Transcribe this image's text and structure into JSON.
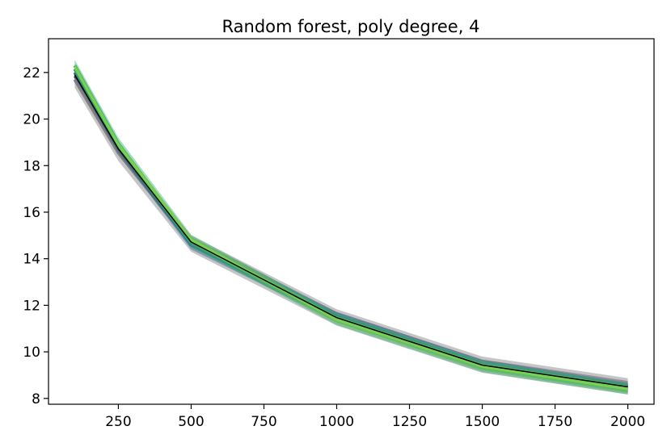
{
  "chart_data": {
    "type": "line",
    "title": "Random forest, poly degree, 4",
    "xlabel": "",
    "ylabel": "",
    "xlim": [
      10,
      2090
    ],
    "ylim": [
      7.75,
      23.45
    ],
    "xticks": [
      250,
      500,
      750,
      1000,
      1250,
      1500,
      1750,
      2000
    ],
    "yticks": [
      8,
      10,
      12,
      14,
      16,
      18,
      20,
      22
    ],
    "x": [
      100,
      250,
      500,
      1000,
      1500,
      2000
    ],
    "grid": false,
    "legend": "none",
    "series": [
      {
        "color": "#3b1c5a",
        "values": [
          21.85,
          18.65,
          14.75,
          11.5,
          9.47,
          8.55
        ],
        "band": 0.2,
        "width": 3
      },
      {
        "color": "#7f7f7f",
        "values": [
          21.7,
          18.55,
          14.65,
          11.48,
          9.45,
          8.52
        ],
        "band": 0.35,
        "width": 4
      },
      {
        "color": "#355f8d",
        "values": [
          22.0,
          18.75,
          14.6,
          11.52,
          9.46,
          8.47
        ],
        "band": 0.2,
        "width": 4
      },
      {
        "color": "#2a8f7f",
        "values": [
          22.15,
          18.85,
          14.7,
          11.45,
          9.4,
          8.44
        ],
        "band": 0.2,
        "width": 4
      },
      {
        "color": "#3bb372",
        "values": [
          22.3,
          18.95,
          14.78,
          11.4,
          9.38,
          8.42
        ],
        "band": 0.25,
        "width": 4
      },
      {
        "color": "#7ad151",
        "values": [
          22.25,
          18.9,
          14.82,
          11.38,
          9.36,
          8.4
        ],
        "band": 0.15,
        "width": 3
      },
      {
        "color": "#000000",
        "values": [
          21.9,
          18.72,
          14.72,
          11.47,
          9.43,
          8.5
        ],
        "band": 0,
        "width": 1.5
      }
    ]
  }
}
